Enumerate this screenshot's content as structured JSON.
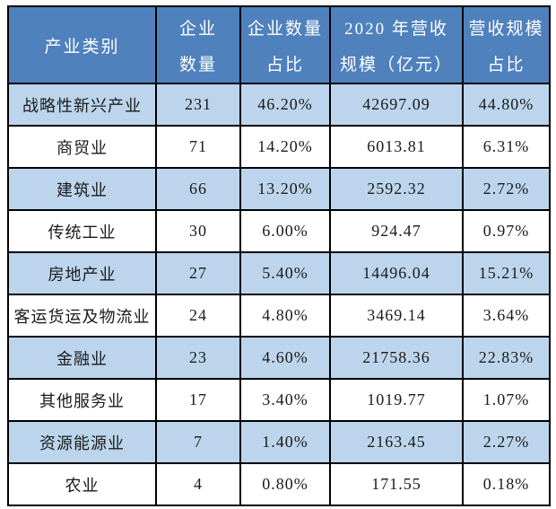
{
  "table": {
    "headers": [
      {
        "line1": "产业类别",
        "line2": ""
      },
      {
        "line1": "企业",
        "line2": "数量"
      },
      {
        "line1": "企业数量",
        "line2": "占比"
      },
      {
        "line1": "2020 年营收",
        "line2": "规模（亿元）"
      },
      {
        "line1": "营收规模",
        "line2": "占比"
      }
    ],
    "rows": [
      [
        "战略性新兴产业",
        "231",
        "46.20%",
        "42697.09",
        "44.80%"
      ],
      [
        "商贸业",
        "71",
        "14.20%",
        "6013.81",
        "6.31%"
      ],
      [
        "建筑业",
        "66",
        "13.20%",
        "2592.32",
        "2.72%"
      ],
      [
        "传统工业",
        "30",
        "6.00%",
        "924.47",
        "0.97%"
      ],
      [
        "房地产业",
        "27",
        "5.40%",
        "14496.04",
        "15.21%"
      ],
      [
        "客运货运及物流业",
        "24",
        "4.80%",
        "3469.14",
        "3.64%"
      ],
      [
        "金融业",
        "23",
        "4.60%",
        "21758.36",
        "22.83%"
      ],
      [
        "其他服务业",
        "17",
        "3.40%",
        "1019.77",
        "1.07%"
      ],
      [
        "资源能源业",
        "7",
        "1.40%",
        "2163.45",
        "2.27%"
      ],
      [
        "农业",
        "4",
        "0.80%",
        "171.55",
        "0.18%"
      ]
    ],
    "colors": {
      "header_bg": "#4F81BD",
      "band_bg": "#BCD5EC",
      "border": "#000000",
      "header_text": "#FFFFFF",
      "body_text": "#1A1A1A"
    }
  }
}
